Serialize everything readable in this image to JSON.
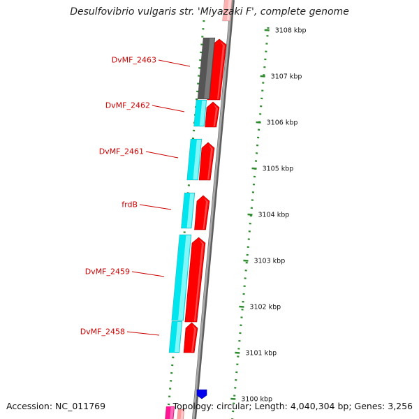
{
  "title": "Desulfovibrio vulgaris str. 'Miyazaki F', complete genome",
  "footer": {
    "accession": "Accession: NC_011769",
    "topology": "Topology: circular; Length: 4,040,304 bp; Genes: 3,256"
  },
  "colors": {
    "background": "#ffffff",
    "backbone": "#8a8a8a",
    "forward_gene": "#ff0000",
    "forward_gene_highlight": "#ff8080",
    "reverse_gene": "#00e5ee",
    "reverse_gene_highlight": "#b9ffff",
    "gray_gene": "#555555",
    "tick_marks": "#2e8b2e",
    "gene_label_text": "#cc0000",
    "marker": "#0000ee",
    "pink_feature": "#ff1493"
  },
  "scale": {
    "ticks": [
      {
        "label": "3108 kbp"
      },
      {
        "label": "3107 kbp"
      },
      {
        "label": "3106 kbp"
      },
      {
        "label": "3105 kbp"
      },
      {
        "label": "3104 kbp"
      },
      {
        "label": "3103 kbp"
      },
      {
        "label": "3102 kbp"
      },
      {
        "label": "3101 kbp"
      },
      {
        "label": "3100 kbp"
      }
    ]
  },
  "gene_labels": [
    {
      "text": "DvMF_2463"
    },
    {
      "text": "DvMF_2462"
    },
    {
      "text": "DvMF_2461"
    },
    {
      "text": "frdB"
    },
    {
      "text": "DvMF_2459"
    },
    {
      "text": "DvMF_2458"
    }
  ]
}
